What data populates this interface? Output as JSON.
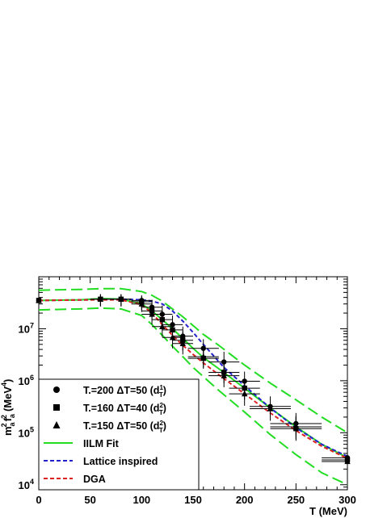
{
  "chart_data": {
    "type": "scatter",
    "title": "",
    "xlabel": "T (MeV)",
    "ylabel_parts": {
      "m": "m",
      "a1": "a",
      "s1": "2",
      "f": "f",
      "a2": "a",
      "s2": "2",
      "unit": "(MeV",
      "usup": "4",
      "close": ")"
    },
    "xlim": [
      0,
      300
    ],
    "ylim": [
      8000,
      100000000
    ],
    "y_scale": "log",
    "x_ticks": [
      "0",
      "50",
      "100",
      "150",
      "200",
      "250",
      "300"
    ],
    "y_ticks": [
      {
        "base": "10",
        "exp": "4",
        "value": 10000
      },
      {
        "base": "10",
        "exp": "5",
        "value": 100000
      },
      {
        "base": "10",
        "exp": "6",
        "value": 1000000
      },
      {
        "base": "10",
        "exp": "7",
        "value": 10000000
      }
    ],
    "legend_position": "bottom-left",
    "legend": [
      {
        "label_main": "T.=200 ΔT=50 (d",
        "label_sup": "1",
        "label_sub": "T",
        "label_end": ")",
        "marker": "circle"
      },
      {
        "label_main": "T.=160 ΔT=40 (d",
        "label_sup": "2",
        "label_sub": "T",
        "label_end": ")",
        "marker": "square"
      },
      {
        "label_main": "T.=150 ΔT=50 (d",
        "label_sup": "2",
        "label_sub": "T",
        "label_end": ")",
        "marker": "triangle"
      },
      {
        "label": "IILM Fit",
        "line": "solid",
        "color": "#22dd22"
      },
      {
        "label": "Lattice inspired",
        "line": "dashed",
        "color": "#2222cc"
      },
      {
        "label": "DGA",
        "line": "dashed",
        "color": "#dd2222"
      }
    ],
    "curves": [
      {
        "name": "IILM Fit",
        "color": "#22dd22",
        "style": "solid",
        "x": [
          0,
          40,
          60,
          80,
          100,
          110,
          120,
          130,
          140,
          150,
          160,
          175,
          200,
          225,
          250,
          275,
          300
        ],
        "y": [
          35000000,
          36000000,
          38000000,
          37000000,
          30000000,
          22000000,
          15000000,
          10000000,
          6500000,
          4200000,
          2800000,
          1700000,
          720000,
          300000,
          130000,
          60000,
          33000
        ]
      },
      {
        "name": "IILM upper band",
        "color": "#22dd22",
        "style": "longdash",
        "x": [
          0,
          40,
          60,
          80,
          100,
          110,
          120,
          130,
          140,
          150,
          160,
          175,
          200,
          225,
          250,
          275,
          300
        ],
        "y": [
          55000000,
          57000000,
          59000000,
          59000000,
          52000000,
          44000000,
          34000000,
          24000000,
          17000000,
          11500000,
          7800000,
          4800000,
          2000000,
          900000,
          430000,
          200000,
          100000
        ]
      },
      {
        "name": "IILM lower band",
        "color": "#22dd22",
        "style": "longdash",
        "x": [
          0,
          40,
          60,
          80,
          100,
          110,
          120,
          130,
          140,
          150,
          160,
          175,
          200,
          225,
          250,
          275,
          300
        ],
        "y": [
          23000000,
          24000000,
          25000000,
          24000000,
          18000000,
          12000000,
          7500000,
          4600000,
          2900000,
          1800000,
          1200000,
          650000,
          250000,
          92000,
          38000,
          17000,
          10000
        ]
      },
      {
        "name": "Lattice inspired",
        "color": "#2222cc",
        "style": "dashed",
        "x": [
          0,
          50,
          80,
          100,
          110,
          120,
          130,
          140,
          150,
          160,
          170,
          180,
          200,
          225,
          250,
          275,
          300
        ],
        "y": [
          35000000,
          36000000,
          37000000,
          36000000,
          34000000,
          30000000,
          22000000,
          14000000,
          8500000,
          5000000,
          3000000,
          1800000,
          800000,
          300000,
          125000,
          60000,
          35000
        ]
      },
      {
        "name": "DGA",
        "color": "#dd2222",
        "style": "dashed",
        "x": [
          0,
          50,
          80,
          100,
          110,
          120,
          130,
          140,
          150,
          160,
          175,
          200,
          225,
          250,
          275,
          300
        ],
        "y": [
          35000000,
          36000000,
          36000000,
          29000000,
          20000000,
          12000000,
          7500000,
          4800000,
          3200000,
          2200000,
          1300000,
          560000,
          240000,
          110000,
          55000,
          32000
        ]
      }
    ],
    "series": [
      {
        "name": "T.=200 ΔT=50 (d1T)",
        "marker": "circle",
        "points": [
          {
            "x": 0,
            "y": 35000000,
            "xerr": 0,
            "yerr": [
              28000000,
              44000000
            ]
          },
          {
            "x": 60,
            "y": 37000000,
            "xerr": 10,
            "yerr": [
              27000000,
              46000000
            ]
          },
          {
            "x": 80,
            "y": 37000000,
            "xerr": 10,
            "yerr": [
              27000000,
              46000000
            ]
          },
          {
            "x": 100,
            "y": 35000000,
            "xerr": 10,
            "yerr": [
              25000000,
              44000000
            ]
          },
          {
            "x": 110,
            "y": 26000000,
            "xerr": 10,
            "yerr": [
              18000000,
              36000000
            ]
          },
          {
            "x": 120,
            "y": 19000000,
            "xerr": 10,
            "yerr": [
              12000000,
              28000000
            ]
          },
          {
            "x": 130,
            "y": 12000000,
            "xerr": 10,
            "yerr": [
              7500000,
              18000000
            ]
          },
          {
            "x": 140,
            "y": 7200000,
            "xerr": 10,
            "yerr": [
              4500000,
              11000000
            ]
          },
          {
            "x": 160,
            "y": 4200000,
            "xerr": 15,
            "yerr": [
              2700000,
              6300000
            ]
          },
          {
            "x": 180,
            "y": 2300000,
            "xerr": 15,
            "yerr": [
              1400000,
              3600000
            ]
          },
          {
            "x": 200,
            "y": 980000,
            "xerr": 15,
            "yerr": [
              600000,
              1500000
            ]
          },
          {
            "x": 225,
            "y": 320000,
            "xerr": 20,
            "yerr": [
              200000,
              500000
            ]
          },
          {
            "x": 250,
            "y": 150000,
            "xerr": 25,
            "yerr": [
              90000,
              240000
            ]
          },
          {
            "x": 300,
            "y": 33000,
            "xerr": 25,
            "yerr": [
              19000,
              52000
            ]
          }
        ]
      },
      {
        "name": "T.=160 ΔT=40 (d2T)",
        "marker": "square",
        "points": [
          {
            "x": 0,
            "y": 35000000,
            "xerr": 0,
            "yerr": [
              28000000,
              44000000
            ]
          },
          {
            "x": 60,
            "y": 37000000,
            "xerr": 10,
            "yerr": [
              27000000,
              46000000
            ]
          },
          {
            "x": 80,
            "y": 37000000,
            "xerr": 10,
            "yerr": [
              27000000,
              46000000
            ]
          },
          {
            "x": 100,
            "y": 33000000,
            "xerr": 10,
            "yerr": [
              23000000,
              42000000
            ]
          },
          {
            "x": 110,
            "y": 22000000,
            "xerr": 10,
            "yerr": [
              15000000,
              31000000
            ]
          },
          {
            "x": 120,
            "y": 15000000,
            "xerr": 10,
            "yerr": [
              9500000,
              22000000
            ]
          },
          {
            "x": 130,
            "y": 9500000,
            "xerr": 10,
            "yerr": [
              6000000,
              14000000
            ]
          },
          {
            "x": 140,
            "y": 6000000,
            "xerr": 10,
            "yerr": [
              3800000,
              9000000
            ]
          },
          {
            "x": 160,
            "y": 2700000,
            "xerr": 15,
            "yerr": [
              1700000,
              4200000
            ]
          },
          {
            "x": 180,
            "y": 1450000,
            "xerr": 15,
            "yerr": [
              900000,
              2300000
            ]
          },
          {
            "x": 200,
            "y": 720000,
            "xerr": 15,
            "yerr": [
              430000,
              1100000
            ]
          },
          {
            "x": 250,
            "y": 120000,
            "xerr": 25,
            "yerr": [
              70000,
              200000
            ]
          },
          {
            "x": 300,
            "y": 30000,
            "xerr": 25,
            "yerr": [
              17000,
              50000
            ]
          }
        ]
      },
      {
        "name": "T.=150 ΔT=50 (d2T)",
        "marker": "triangle",
        "points": [
          {
            "x": 0,
            "y": 35000000,
            "xerr": 0,
            "yerr": [
              28000000,
              44000000
            ]
          },
          {
            "x": 60,
            "y": 37000000,
            "xerr": 10,
            "yerr": [
              27000000,
              46000000
            ]
          },
          {
            "x": 80,
            "y": 37000000,
            "xerr": 10,
            "yerr": [
              27000000,
              46000000
            ]
          },
          {
            "x": 100,
            "y": 30000000,
            "xerr": 10,
            "yerr": [
              21000000,
              40000000
            ]
          },
          {
            "x": 110,
            "y": 19000000,
            "xerr": 10,
            "yerr": [
              12000000,
              28000000
            ]
          },
          {
            "x": 120,
            "y": 11000000,
            "xerr": 10,
            "yerr": [
              7000000,
              17000000
            ]
          },
          {
            "x": 130,
            "y": 6800000,
            "xerr": 10,
            "yerr": [
              4200000,
              10500000
            ]
          },
          {
            "x": 140,
            "y": 5200000,
            "xerr": 10,
            "yerr": [
              3200000,
              8000000
            ]
          },
          {
            "x": 160,
            "y": 2900000,
            "xerr": 15,
            "yerr": [
              1800000,
              4500000
            ]
          },
          {
            "x": 180,
            "y": 1250000,
            "xerr": 15,
            "yerr": [
              750000,
              2000000
            ]
          },
          {
            "x": 200,
            "y": 560000,
            "xerr": 15,
            "yerr": [
              330000,
              900000
            ]
          },
          {
            "x": 225,
            "y": 290000,
            "xerr": 20,
            "yerr": [
              170000,
              470000
            ]
          },
          {
            "x": 250,
            "y": 130000,
            "xerr": 25,
            "yerr": [
              75000,
              210000
            ]
          },
          {
            "x": 300,
            "y": 28000,
            "xerr": 25,
            "yerr": [
              16000,
              47000
            ]
          }
        ]
      }
    ]
  }
}
